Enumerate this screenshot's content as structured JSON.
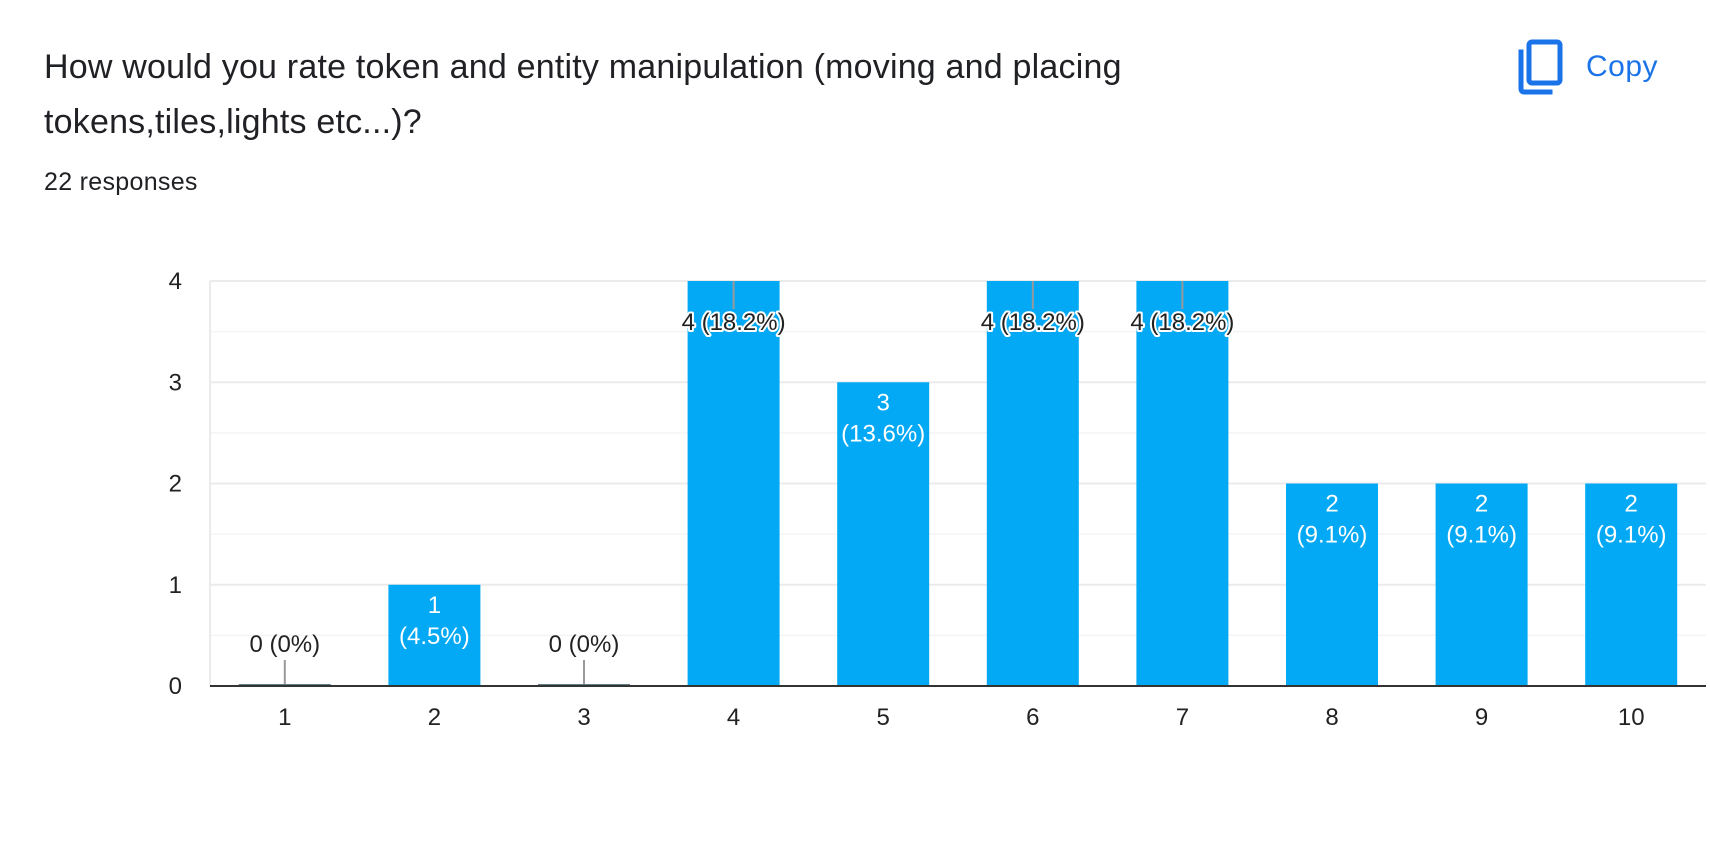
{
  "question": {
    "title": "How would you rate token and entity manipulation (moving and placing tokens,tiles,lights etc...)?",
    "responses": "22 responses"
  },
  "toolbar": {
    "copy_label": "Copy",
    "copy_icon": "copy-icon"
  },
  "colors": {
    "bar": "#03a9f4",
    "accent": "#1a73e8",
    "grid": "#ebebeb",
    "axis": "#333333",
    "text": "#202124"
  },
  "chart_data": {
    "type": "bar",
    "categories": [
      "1",
      "2",
      "3",
      "4",
      "5",
      "6",
      "7",
      "8",
      "9",
      "10"
    ],
    "values": [
      0,
      1,
      0,
      4,
      3,
      4,
      4,
      2,
      2,
      2
    ],
    "labels": [
      "0 (0%)",
      "1 (4.5%)",
      "0 (0%)",
      "4 (18.2%)",
      "3 (13.6%)",
      "4 (18.2%)",
      "4 (18.2%)",
      "2 (9.1%)",
      "2 (9.1%)",
      "2 (9.1%)"
    ],
    "ylim": [
      0,
      4
    ],
    "yticks": [
      0,
      1,
      2,
      3,
      4
    ],
    "grid": true,
    "title": "",
    "xlabel": "",
    "ylabel": ""
  }
}
